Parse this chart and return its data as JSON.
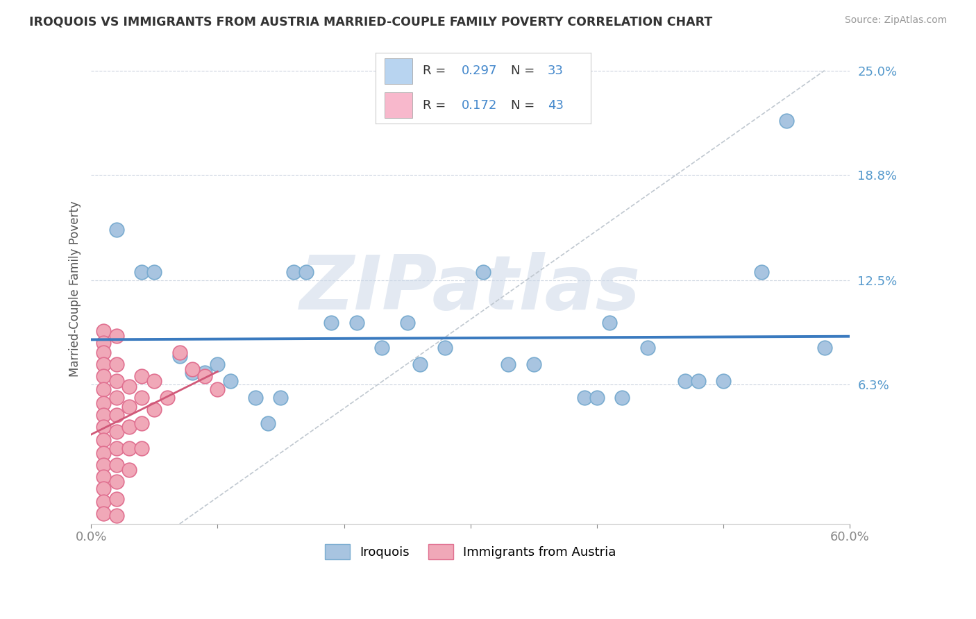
{
  "title": "IROQUOIS VS IMMIGRANTS FROM AUSTRIA MARRIED-COUPLE FAMILY POVERTY CORRELATION CHART",
  "source": "Source: ZipAtlas.com",
  "ylabel": "Married-Couple Family Poverty",
  "xlim": [
    0.0,
    0.6
  ],
  "ylim": [
    -0.02,
    0.26
  ],
  "ytick_labels_right": [
    "6.3%",
    "12.5%",
    "18.8%",
    "25.0%"
  ],
  "ytick_vals_right": [
    0.063,
    0.125,
    0.188,
    0.25
  ],
  "R_iroquois": 0.297,
  "N_iroquois": 33,
  "R_austria": 0.172,
  "N_austria": 43,
  "iroquois_color": "#a8c4e0",
  "iroquois_edge": "#7aacd0",
  "austria_color": "#f0a8b8",
  "austria_edge": "#e07090",
  "regression_iroquois_color": "#3a7abf",
  "regression_austria_color": "#d05878",
  "legend_box_iroquois": "#b8d4f0",
  "legend_box_austria": "#f8b8cc",
  "iroquois_scatter": [
    [
      0.02,
      0.155
    ],
    [
      0.04,
      0.13
    ],
    [
      0.05,
      0.13
    ],
    [
      0.07,
      0.08
    ],
    [
      0.08,
      0.07
    ],
    [
      0.09,
      0.07
    ],
    [
      0.1,
      0.075
    ],
    [
      0.11,
      0.065
    ],
    [
      0.13,
      0.055
    ],
    [
      0.14,
      0.04
    ],
    [
      0.15,
      0.055
    ],
    [
      0.16,
      0.13
    ],
    [
      0.17,
      0.13
    ],
    [
      0.19,
      0.1
    ],
    [
      0.21,
      0.1
    ],
    [
      0.23,
      0.085
    ],
    [
      0.25,
      0.1
    ],
    [
      0.26,
      0.075
    ],
    [
      0.28,
      0.085
    ],
    [
      0.31,
      0.13
    ],
    [
      0.33,
      0.075
    ],
    [
      0.35,
      0.075
    ],
    [
      0.39,
      0.055
    ],
    [
      0.41,
      0.1
    ],
    [
      0.44,
      0.085
    ],
    [
      0.47,
      0.065
    ],
    [
      0.48,
      0.065
    ],
    [
      0.5,
      0.065
    ],
    [
      0.4,
      0.055
    ],
    [
      0.42,
      0.055
    ],
    [
      0.53,
      0.13
    ],
    [
      0.55,
      0.22
    ],
    [
      0.58,
      0.085
    ]
  ],
  "austria_scatter": [
    [
      0.01,
      0.095
    ],
    [
      0.01,
      0.088
    ],
    [
      0.01,
      0.082
    ],
    [
      0.01,
      0.075
    ],
    [
      0.01,
      0.068
    ],
    [
      0.01,
      0.06
    ],
    [
      0.01,
      0.052
    ],
    [
      0.01,
      0.045
    ],
    [
      0.01,
      0.038
    ],
    [
      0.01,
      0.03
    ],
    [
      0.01,
      0.022
    ],
    [
      0.01,
      0.015
    ],
    [
      0.01,
      0.008
    ],
    [
      0.01,
      0.001
    ],
    [
      0.01,
      -0.007
    ],
    [
      0.01,
      -0.014
    ],
    [
      0.02,
      0.092
    ],
    [
      0.02,
      0.075
    ],
    [
      0.02,
      0.065
    ],
    [
      0.02,
      0.055
    ],
    [
      0.02,
      0.045
    ],
    [
      0.02,
      0.035
    ],
    [
      0.02,
      0.025
    ],
    [
      0.02,
      0.015
    ],
    [
      0.02,
      0.005
    ],
    [
      0.02,
      -0.005
    ],
    [
      0.02,
      -0.015
    ],
    [
      0.03,
      0.062
    ],
    [
      0.03,
      0.05
    ],
    [
      0.03,
      0.038
    ],
    [
      0.03,
      0.025
    ],
    [
      0.03,
      0.012
    ],
    [
      0.04,
      0.068
    ],
    [
      0.04,
      0.055
    ],
    [
      0.04,
      0.04
    ],
    [
      0.04,
      0.025
    ],
    [
      0.05,
      0.065
    ],
    [
      0.05,
      0.048
    ],
    [
      0.06,
      0.055
    ],
    [
      0.07,
      0.082
    ],
    [
      0.08,
      0.072
    ],
    [
      0.09,
      0.068
    ],
    [
      0.1,
      0.06
    ]
  ],
  "watermark": "ZIPatlas",
  "watermark_color": "#ccd8e8",
  "background_color": "#ffffff"
}
